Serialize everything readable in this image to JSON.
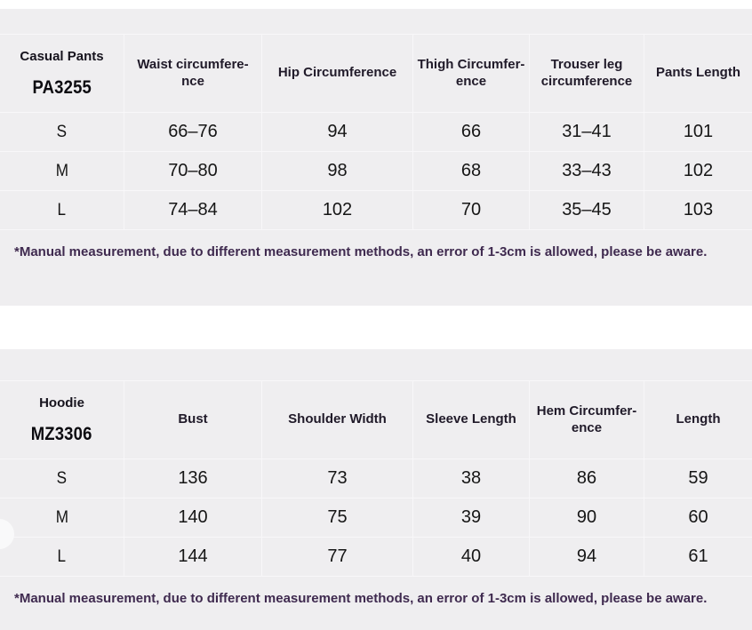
{
  "colors": {
    "panel_bg": "#efeef0",
    "separator": "#f8f7f9",
    "header_text": "#201a29",
    "product_text": "#16131d",
    "model_text": "#0c0b10",
    "size_text": "#141414",
    "value_text": "#161616",
    "note_text": "#3f2a4f"
  },
  "tables": [
    {
      "product": "Casual Pants",
      "model": "PA3255",
      "columns": [
        "Waist circumfere-\nnce",
        "Hip Circumference",
        "Thigh Circumfer-\nence",
        "Trouser leg\ncircumference",
        "Pants Length"
      ],
      "rows": [
        {
          "size": "S",
          "values": [
            "66–76",
            "94",
            "66",
            "31–41",
            "101"
          ]
        },
        {
          "size": "M",
          "values": [
            "70–80",
            "98",
            "68",
            "33–43",
            "102"
          ]
        },
        {
          "size": "L",
          "values": [
            "74–84",
            "102",
            "70",
            "35–45",
            "103"
          ]
        }
      ],
      "note": "*Manual measurement, due to different measurement methods, an error of 1-3cm is allowed, please be aware."
    },
    {
      "product": "Hoodie",
      "model": "MZ3306",
      "columns": [
        "Bust",
        "Shoulder Width",
        "Sleeve Length",
        "Hem Circumfer-\nence",
        "Length"
      ],
      "rows": [
        {
          "size": "S",
          "values": [
            "136",
            "73",
            "38",
            "86",
            "59"
          ]
        },
        {
          "size": "M",
          "values": [
            "140",
            "75",
            "39",
            "90",
            "60"
          ]
        },
        {
          "size": "L",
          "values": [
            "144",
            "77",
            "40",
            "94",
            "61"
          ]
        }
      ],
      "note": "*Manual measurement, due to different measurement methods, an error of 1-3cm is allowed, please be aware."
    }
  ]
}
